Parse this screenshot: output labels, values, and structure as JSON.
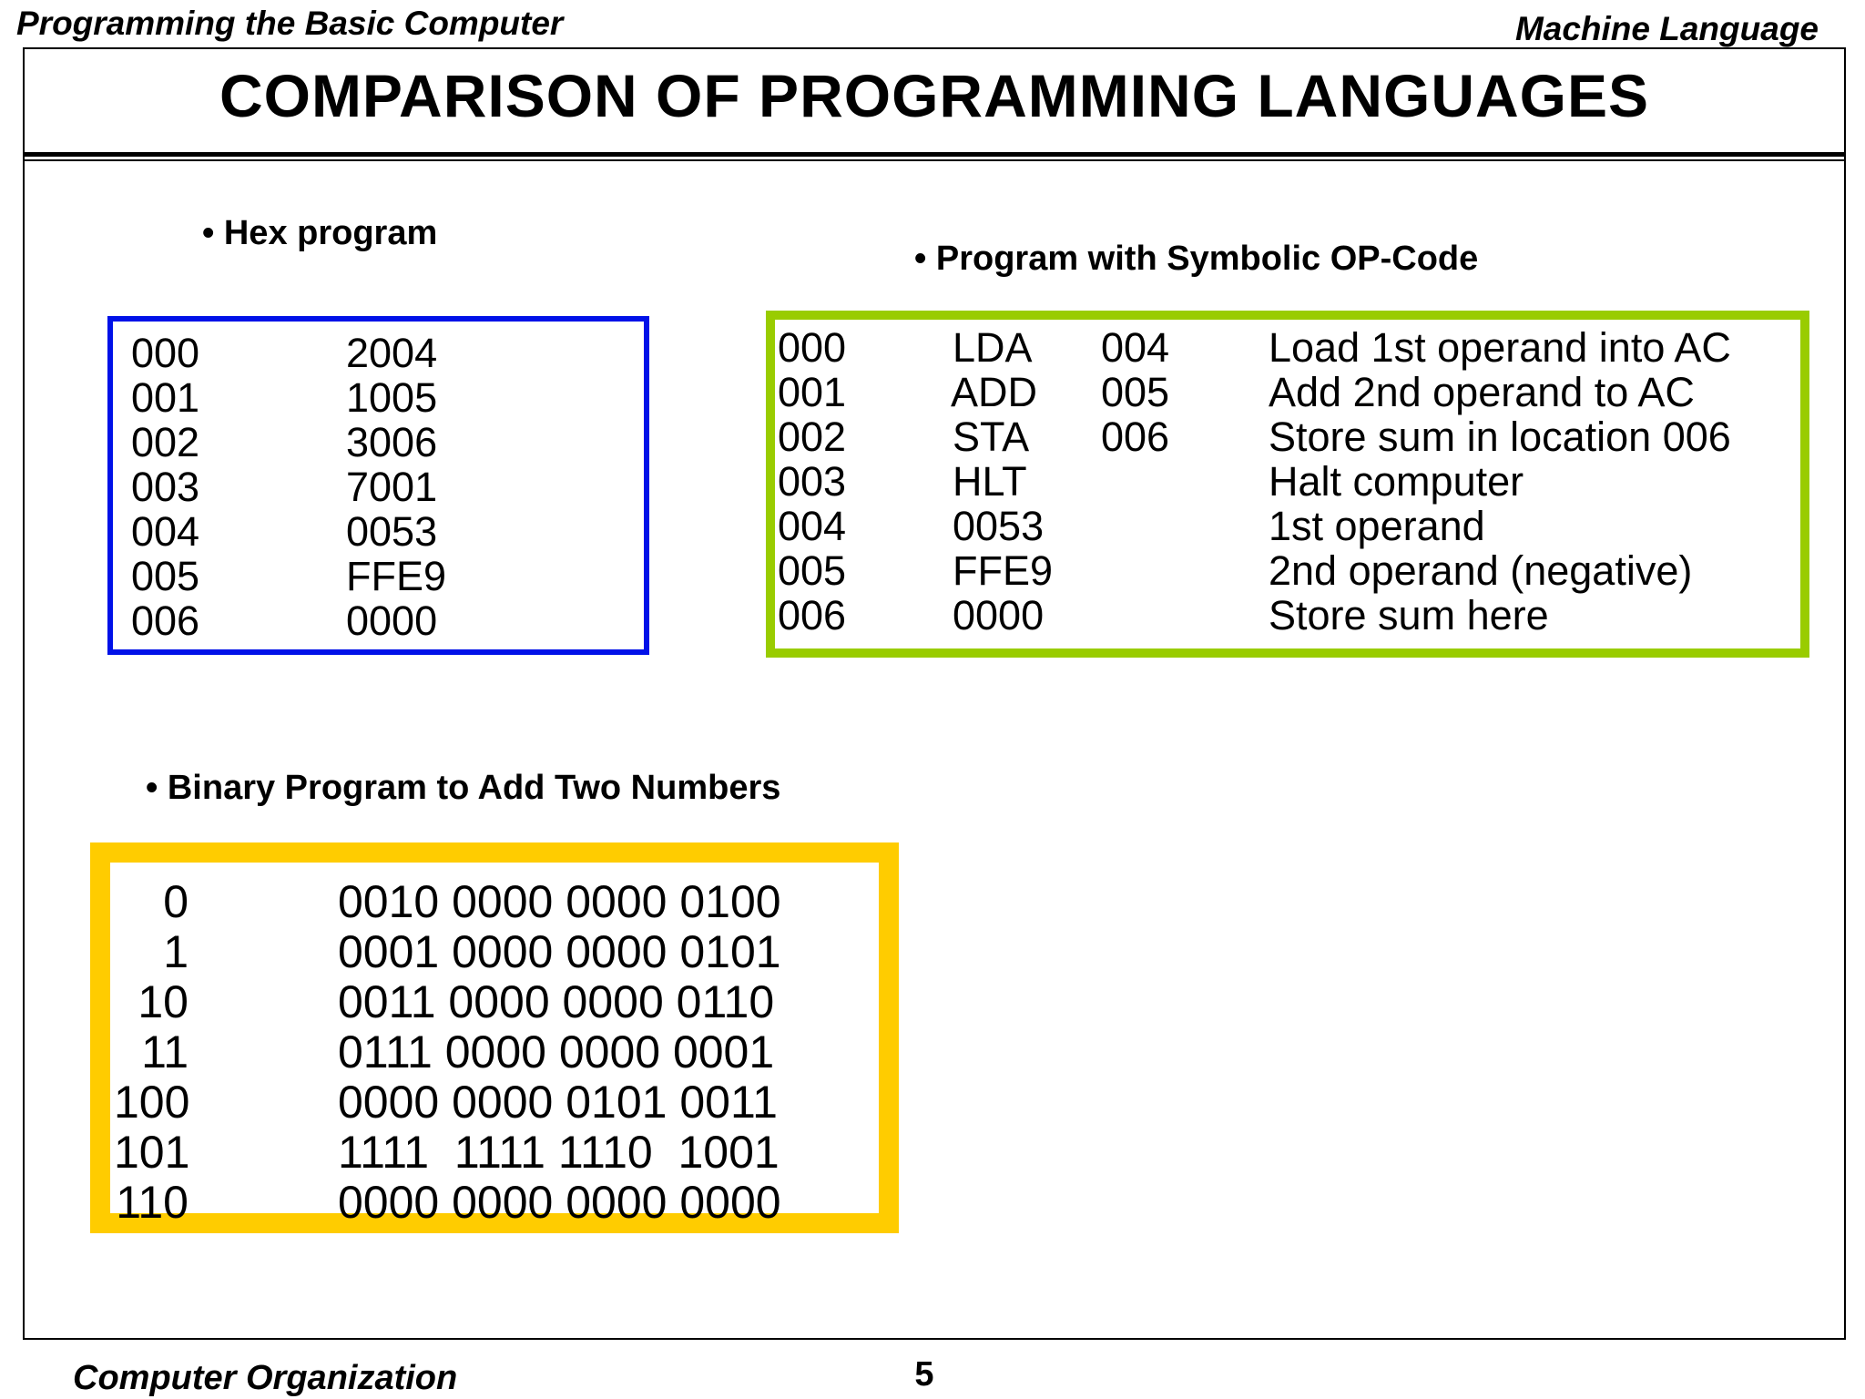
{
  "header": {
    "left": "Programming the Basic Computer",
    "right": "Machine Language"
  },
  "title": "COMPARISON  OF  PROGRAMMING LANGUAGES",
  "hex": {
    "label": "• Hex program",
    "rows": [
      {
        "addr": "000",
        "code": "2004"
      },
      {
        "addr": "001",
        "code": "1005"
      },
      {
        "addr": "002",
        "code": "3006"
      },
      {
        "addr": "003",
        "code": "7001"
      },
      {
        "addr": "004",
        "code": "0053"
      },
      {
        "addr": "005",
        "code": "FFE9"
      },
      {
        "addr": "006",
        "code": "0000"
      }
    ]
  },
  "symbolic": {
    "label": "• Program with Symbolic OP-Code",
    "rows": [
      {
        "addr": "000",
        "op": "LDA",
        "operand": "004",
        "comment": "Load 1st operand into AC"
      },
      {
        "addr": "001",
        "op": "ADD",
        "operand": "005",
        "comment": "Add 2nd operand to AC"
      },
      {
        "addr": "002",
        "op": "STA",
        "operand": "006",
        "comment": "Store sum in location 006"
      },
      {
        "addr": "003",
        "op": "HLT",
        "operand": "",
        "comment": "Halt computer"
      },
      {
        "addr": "004",
        "op": "0053",
        "operand": "",
        "comment": "1st operand"
      },
      {
        "addr": "005",
        "op": "FFE9",
        "operand": "",
        "comment": "2nd operand (negative)"
      },
      {
        "addr": "006",
        "op": "0000",
        "operand": "",
        "comment": "Store sum here"
      }
    ]
  },
  "binary": {
    "label": "• Binary Program to Add Two Numbers",
    "rows": [
      {
        "addr": "0",
        "code": "0010 0000 0000 0100"
      },
      {
        "addr": "1",
        "code": "0001 0000 0000 0101"
      },
      {
        "addr": "10",
        "code": "0011 0000 0000 0110"
      },
      {
        "addr": "11",
        "code": "0111 0000 0000 0001"
      },
      {
        "addr": "100",
        "code": "0000 0000 0101 0011"
      },
      {
        "addr": "101",
        "code": "1111  1111 1110  1001"
      },
      {
        "addr": "110",
        "code": "0000 0000 0000 0000"
      }
    ]
  },
  "footer": {
    "left": "Computer Organization",
    "page": "5"
  },
  "colors": {
    "hex_border": "#0011e8",
    "symbolic_border": "#99cc00",
    "binary_border": "#ffcc00"
  }
}
